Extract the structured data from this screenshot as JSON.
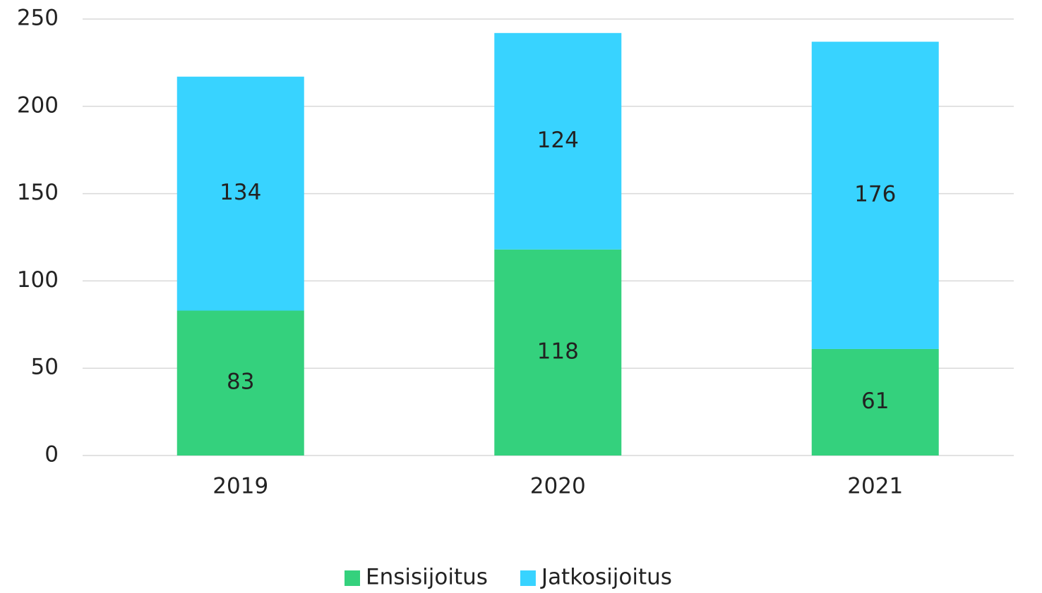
{
  "chart_data": {
    "type": "stacked_bar",
    "categories": [
      "2019",
      "2020",
      "2021"
    ],
    "series": [
      {
        "name": "Ensisijoitus",
        "color": "#34d17d",
        "values": [
          83,
          118,
          61
        ]
      },
      {
        "name": "Jatkosijoitus",
        "color": "#38d3ff",
        "values": [
          134,
          124,
          176
        ]
      }
    ],
    "ylim": [
      0,
      250
    ],
    "yticks": [
      0,
      50,
      100,
      150,
      200,
      250
    ],
    "grid": true,
    "legend": "bottom"
  }
}
